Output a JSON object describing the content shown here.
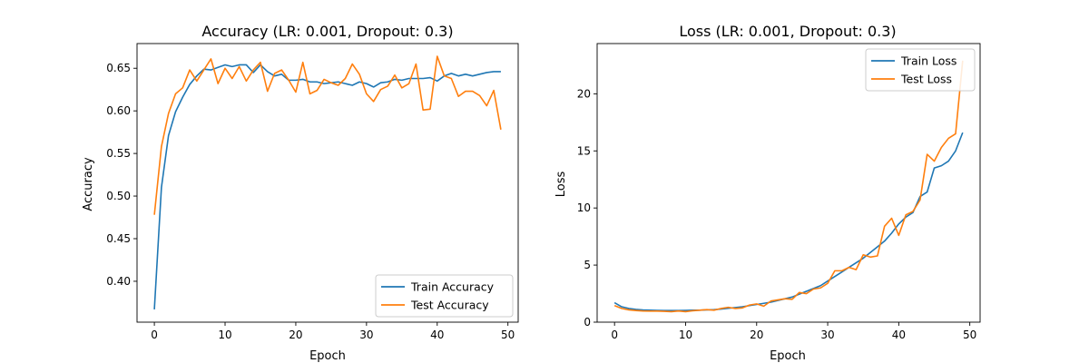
{
  "colors": {
    "train": "#1f77b4",
    "test": "#ff7f0e"
  },
  "chart_data": [
    {
      "type": "line",
      "title": "Accuracy (LR: 0.001, Dropout: 0.3)",
      "xlabel": "Epoch",
      "ylabel": "Accuracy",
      "xlim": [
        -2.45,
        51.45
      ],
      "ylim": [
        0.352,
        0.679
      ],
      "xticks": [
        0,
        10,
        20,
        30,
        40,
        50
      ],
      "xtick_labels": [
        "0",
        "10",
        "20",
        "30",
        "40",
        "50"
      ],
      "yticks": [
        0.4,
        0.45,
        0.5,
        0.55,
        0.6,
        0.65
      ],
      "ytick_labels": [
        "0.40",
        "0.45",
        "0.50",
        "0.55",
        "0.60",
        "0.65"
      ],
      "grid": false,
      "legend_position": "lower-right",
      "x": [
        0,
        1,
        2,
        3,
        4,
        5,
        6,
        7,
        8,
        9,
        10,
        11,
        12,
        13,
        14,
        15,
        16,
        17,
        18,
        19,
        20,
        21,
        22,
        23,
        24,
        25,
        26,
        27,
        28,
        29,
        30,
        31,
        32,
        33,
        34,
        35,
        36,
        37,
        38,
        39,
        40,
        41,
        42,
        43,
        44,
        45,
        46,
        47,
        48,
        49
      ],
      "series": [
        {
          "name": "Train Accuracy",
          "color": "#1f77b4",
          "values": [
            0.367,
            0.51,
            0.571,
            0.599,
            0.616,
            0.631,
            0.641,
            0.649,
            0.648,
            0.651,
            0.654,
            0.652,
            0.654,
            0.654,
            0.645,
            0.654,
            0.646,
            0.641,
            0.643,
            0.636,
            0.636,
            0.637,
            0.634,
            0.634,
            0.632,
            0.633,
            0.634,
            0.632,
            0.63,
            0.634,
            0.632,
            0.628,
            0.633,
            0.634,
            0.637,
            0.636,
            0.638,
            0.638,
            0.638,
            0.639,
            0.635,
            0.641,
            0.644,
            0.641,
            0.643,
            0.641,
            0.643,
            0.645,
            0.646,
            0.646
          ]
        },
        {
          "name": "Test Accuracy",
          "color": "#ff7f0e",
          "values": [
            0.478,
            0.558,
            0.597,
            0.62,
            0.627,
            0.648,
            0.635,
            0.648,
            0.661,
            0.632,
            0.65,
            0.638,
            0.652,
            0.635,
            0.648,
            0.657,
            0.623,
            0.644,
            0.648,
            0.636,
            0.622,
            0.657,
            0.62,
            0.624,
            0.637,
            0.633,
            0.63,
            0.638,
            0.655,
            0.643,
            0.62,
            0.611,
            0.625,
            0.629,
            0.642,
            0.627,
            0.632,
            0.655,
            0.601,
            0.602,
            0.664,
            0.641,
            0.638,
            0.617,
            0.623,
            0.623,
            0.618,
            0.606,
            0.624,
            0.578
          ]
        }
      ]
    },
    {
      "type": "line",
      "title": "Loss (LR: 0.001, Dropout: 0.3)",
      "xlabel": "Epoch",
      "ylabel": "Loss",
      "xlim": [
        -2.45,
        51.45
      ],
      "ylim": [
        0,
        24.4
      ],
      "xticks": [
        0,
        10,
        20,
        30,
        40,
        50
      ],
      "xtick_labels": [
        "0",
        "10",
        "20",
        "30",
        "40",
        "50"
      ],
      "yticks": [
        0,
        5,
        10,
        15,
        20
      ],
      "ytick_labels": [
        "0",
        "5",
        "10",
        "15",
        "20"
      ],
      "grid": false,
      "legend_position": "upper-right",
      "x": [
        0,
        1,
        2,
        3,
        4,
        5,
        6,
        7,
        8,
        9,
        10,
        11,
        12,
        13,
        14,
        15,
        16,
        17,
        18,
        19,
        20,
        21,
        22,
        23,
        24,
        25,
        26,
        27,
        28,
        29,
        30,
        31,
        32,
        33,
        34,
        35,
        36,
        37,
        38,
        39,
        40,
        41,
        42,
        43,
        44,
        45,
        46,
        47,
        48,
        49
      ],
      "series": [
        {
          "name": "Train Loss",
          "color": "#1f77b4",
          "values": [
            1.7,
            1.35,
            1.2,
            1.12,
            1.07,
            1.05,
            1.03,
            1.02,
            1.02,
            1.02,
            1.03,
            1.05,
            1.05,
            1.08,
            1.1,
            1.15,
            1.22,
            1.28,
            1.35,
            1.45,
            1.55,
            1.65,
            1.75,
            1.9,
            2.05,
            2.2,
            2.45,
            2.7,
            2.95,
            3.2,
            3.6,
            4.0,
            4.4,
            4.8,
            5.2,
            5.6,
            6.1,
            6.6,
            7.1,
            7.8,
            8.6,
            9.2,
            9.6,
            11.0,
            11.4,
            13.5,
            13.7,
            14.1,
            15.0,
            16.6
          ]
        },
        {
          "name": "Test Loss",
          "color": "#ff7f0e",
          "values": [
            1.45,
            1.2,
            1.08,
            1.02,
            0.98,
            0.97,
            0.97,
            0.95,
            0.92,
            0.98,
            0.92,
            1.0,
            1.05,
            1.1,
            1.05,
            1.2,
            1.3,
            1.2,
            1.25,
            1.5,
            1.6,
            1.4,
            1.85,
            1.95,
            2.05,
            2.0,
            2.6,
            2.5,
            2.9,
            3.0,
            3.4,
            4.5,
            4.5,
            4.8,
            4.6,
            5.9,
            5.7,
            5.8,
            8.4,
            9.1,
            7.6,
            9.4,
            9.7,
            10.7,
            14.7,
            14.1,
            15.3,
            16.1,
            16.5,
            22.9
          ]
        }
      ]
    }
  ]
}
